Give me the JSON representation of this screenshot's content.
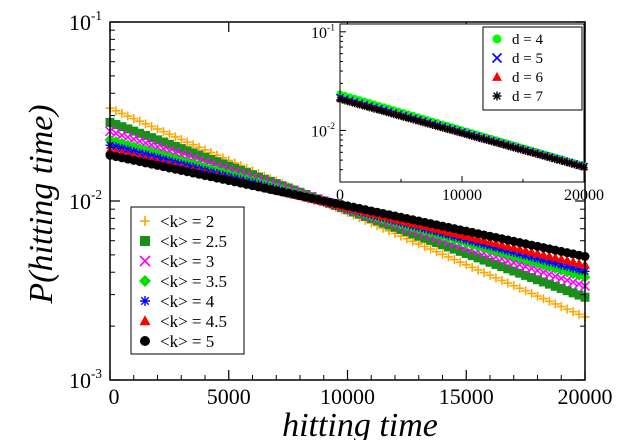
{
  "chart_data": [
    {
      "type": "scatter",
      "panel": "main",
      "xlabel": "hitting time",
      "ylabel": "P(hitting time)",
      "xlim": [
        0,
        20000
      ],
      "ylim": [
        0.001,
        0.1
      ],
      "yscale": "log",
      "grid": false,
      "legend_position": "bottom-left",
      "x_ticks": [
        "0",
        "5000",
        "10000",
        "15000",
        "20000"
      ],
      "y_ticks": [
        {
          "base": "10",
          "exp": "-1",
          "value": 0.1
        },
        {
          "base": "10",
          "exp": "-2",
          "value": 0.01
        },
        {
          "base": "10",
          "exp": "-3",
          "value": 0.001
        }
      ],
      "series": [
        {
          "name": "<k> = 2",
          "marker": "plus",
          "color": "#FFA500",
          "x_range": [
            0,
            20000
          ],
          "y_start": 0.033,
          "y_end": 0.00225
        },
        {
          "name": "<k> = 2.5",
          "marker": "square",
          "color": "#1A8F1A",
          "x_range": [
            0,
            20000
          ],
          "y_start": 0.0275,
          "y_end": 0.0029
        },
        {
          "name": "<k> = 3",
          "marker": "x",
          "color": "#FF00FF",
          "x_range": [
            0,
            20000
          ],
          "y_start": 0.0245,
          "y_end": 0.00335
        },
        {
          "name": "<k> = 3.5",
          "marker": "diamond",
          "color": "#00E000",
          "x_range": [
            0,
            20000
          ],
          "y_start": 0.022,
          "y_end": 0.00375
        },
        {
          "name": "<k> = 4",
          "marker": "asterisk",
          "color": "#0000FF",
          "x_range": [
            0,
            20000
          ],
          "y_start": 0.0205,
          "y_end": 0.00405
        },
        {
          "name": "<k> = 4.5",
          "marker": "triangle",
          "color": "#FF0000",
          "x_range": [
            0,
            20000
          ],
          "y_start": 0.0192,
          "y_end": 0.0044
        },
        {
          "name": "<k> = 5",
          "marker": "circle",
          "color": "#000000",
          "x_range": [
            0,
            20000
          ],
          "y_start": 0.018,
          "y_end": 0.0049
        }
      ]
    },
    {
      "type": "scatter",
      "panel": "inset",
      "xlim": [
        0,
        20000
      ],
      "ylim": [
        0.003,
        0.12
      ],
      "yscale": "log",
      "grid": false,
      "legend_position": "top-right",
      "x_ticks": [
        "0",
        "10000",
        "20000"
      ],
      "y_ticks": [
        {
          "base": "10",
          "exp": "-1",
          "value": 0.1
        },
        {
          "base": "10",
          "exp": "-2",
          "value": 0.01
        }
      ],
      "series": [
        {
          "name": "d = 4",
          "marker": "circle",
          "color": "#00FF00",
          "x_range": [
            0,
            20000
          ],
          "y_start": 0.0235,
          "y_end": 0.0044
        },
        {
          "name": "d = 5",
          "marker": "x",
          "color": "#0000FF",
          "x_range": [
            0,
            20000
          ],
          "y_start": 0.0215,
          "y_end": 0.0043
        },
        {
          "name": "d = 6",
          "marker": "triangle",
          "color": "#FF0000",
          "x_range": [
            0,
            20000
          ],
          "y_start": 0.021,
          "y_end": 0.0043
        },
        {
          "name": "d = 7",
          "marker": "asterisk",
          "color": "#000000",
          "x_range": [
            0,
            20000
          ],
          "y_start": 0.0205,
          "y_end": 0.0042
        }
      ]
    }
  ]
}
